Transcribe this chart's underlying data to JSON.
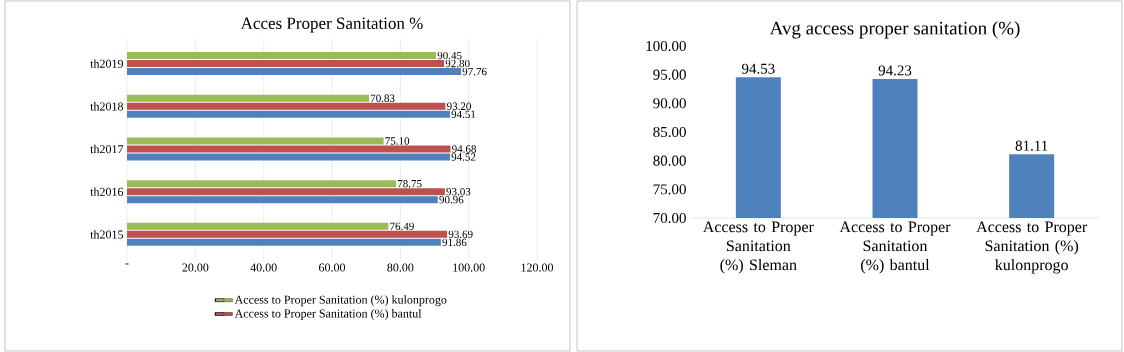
{
  "chart_data": [
    {
      "type": "bar",
      "orientation": "horizontal",
      "title": "Acces Proper Sanitation  %",
      "categories": [
        "th2019",
        "th2018",
        "th2017",
        "th2016",
        "th2015"
      ],
      "series": [
        {
          "name": "Access to Proper Sanitation (%) kulonprogo",
          "color": "#9bbb59",
          "values": [
            90.45,
            70.83,
            75.1,
            78.75,
            76.49
          ],
          "value_labels": [
            "90.45",
            "70.83",
            "75.10",
            "78.75",
            "76.49"
          ]
        },
        {
          "name": "Access to Proper Sanitation (%) bantul",
          "color": "#c0504d",
          "values": [
            92.8,
            93.2,
            94.68,
            93.03,
            93.69
          ],
          "value_labels": [
            "92.80",
            "93.20",
            "94.68",
            "93.03",
            "93.69"
          ]
        },
        {
          "color": "#4f81bd",
          "values": [
            97.76,
            94.51,
            94.52,
            90.96,
            91.86
          ],
          "value_labels": [
            "97.76",
            "94.51",
            "94.52",
            "90.96",
            "91.86"
          ]
        }
      ],
      "xlim": [
        0,
        120
      ],
      "xticks": [
        {
          "value": 0,
          "label": "-"
        },
        {
          "value": 20,
          "label": "20.00"
        },
        {
          "value": 40,
          "label": "40.00"
        },
        {
          "value": 60,
          "label": "60.00"
        },
        {
          "value": 80,
          "label": "80.00"
        },
        {
          "value": 100,
          "label": "100.00"
        },
        {
          "value": 120,
          "label": "120.00"
        }
      ],
      "grid": "x",
      "legend": "bottom"
    },
    {
      "type": "bar",
      "title": "Avg access proper sanitation (%)",
      "categories": [
        "Access to Proper Sanitation (%) Sleman",
        "Access to Proper Sanitation (%) bantul",
        "Access to Proper Sanitation (%) kulonprogo"
      ],
      "values": [
        94.53,
        94.23,
        81.11
      ],
      "value_labels": [
        "94.53",
        "94.23",
        "81.11"
      ],
      "color": "#4f81bd",
      "ylim": [
        70,
        100
      ],
      "yticks": [
        {
          "value": 70,
          "label": "70.00"
        },
        {
          "value": 75,
          "label": "75.00"
        },
        {
          "value": 80,
          "label": "80.00"
        },
        {
          "value": 85,
          "label": "85.00"
        },
        {
          "value": 90,
          "label": "90.00"
        },
        {
          "value": 95,
          "label": "95.00"
        },
        {
          "value": 100,
          "label": "100.00"
        }
      ]
    }
  ]
}
